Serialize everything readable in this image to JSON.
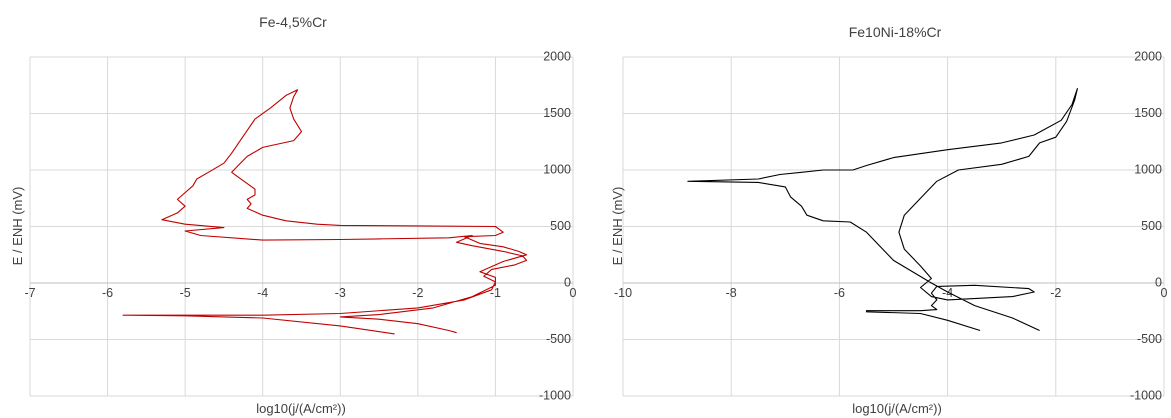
{
  "chart_data": [
    {
      "type": "line",
      "title": "Fe-4,5%Cr",
      "xlabel": "log10(j/(A/cm²))",
      "ylabel": "E / ENH (mV)",
      "xlim": [
        -7,
        0
      ],
      "ylim": [
        -1000,
        2000
      ],
      "xticks": [
        -7,
        -6,
        -5,
        -4,
        -3,
        -2,
        -1,
        0
      ],
      "yticks": [
        -1000,
        -500,
        0,
        500,
        1000,
        1500,
        2000
      ],
      "grid": true,
      "color": "#c00000",
      "series": [
        {
          "values": [
            [
              -2.3,
              -450
            ],
            [
              -3.0,
              -380
            ],
            [
              -4.0,
              -310
            ],
            [
              -5.0,
              -290
            ],
            [
              -5.8,
              -285
            ],
            [
              -5.0,
              -285
            ],
            [
              -4.0,
              -285
            ],
            [
              -3.0,
              -270
            ],
            [
              -2.0,
              -220
            ],
            [
              -1.4,
              -150
            ],
            [
              -1.05,
              -60
            ],
            [
              -1.0,
              10
            ],
            [
              -1.15,
              60
            ],
            [
              -1.05,
              120
            ],
            [
              -0.75,
              160
            ],
            [
              -0.6,
              200
            ],
            [
              -0.65,
              240
            ],
            [
              -0.9,
              280
            ],
            [
              -1.3,
              330
            ],
            [
              -1.5,
              360
            ],
            [
              -1.3,
              420
            ],
            [
              -1.6,
              400
            ],
            [
              -2.5,
              390
            ],
            [
              -3.0,
              385
            ],
            [
              -4.0,
              380
            ],
            [
              -4.8,
              420
            ],
            [
              -5.0,
              460
            ],
            [
              -4.5,
              490
            ],
            [
              -5.0,
              520
            ],
            [
              -5.3,
              560
            ],
            [
              -5.1,
              620
            ],
            [
              -5.0,
              680
            ],
            [
              -5.1,
              740
            ],
            [
              -5.0,
              800
            ],
            [
              -4.9,
              860
            ],
            [
              -4.85,
              920
            ],
            [
              -4.7,
              980
            ],
            [
              -4.5,
              1060
            ],
            [
              -4.4,
              1150
            ],
            [
              -4.3,
              1250
            ],
            [
              -4.2,
              1350
            ],
            [
              -4.1,
              1450
            ],
            [
              -3.9,
              1550
            ],
            [
              -3.7,
              1660
            ],
            [
              -3.55,
              1710
            ],
            [
              -3.6,
              1650
            ],
            [
              -3.65,
              1550
            ],
            [
              -3.6,
              1450
            ],
            [
              -3.5,
              1340
            ],
            [
              -3.6,
              1260
            ],
            [
              -4.0,
              1200
            ],
            [
              -4.2,
              1120
            ],
            [
              -4.3,
              1050
            ],
            [
              -4.4,
              980
            ],
            [
              -4.3,
              930
            ],
            [
              -4.2,
              880
            ],
            [
              -4.1,
              830
            ],
            [
              -4.1,
              780
            ],
            [
              -4.2,
              740
            ],
            [
              -4.15,
              700
            ],
            [
              -4.2,
              660
            ],
            [
              -4.0,
              600
            ],
            [
              -3.7,
              550
            ],
            [
              -3.3,
              520
            ],
            [
              -3.0,
              510
            ],
            [
              -2.0,
              505
            ],
            [
              -1.0,
              500
            ],
            [
              -0.9,
              450
            ],
            [
              -1.0,
              420
            ],
            [
              -1.4,
              410
            ],
            [
              -1.2,
              350
            ],
            [
              -0.9,
              320
            ],
            [
              -0.7,
              280
            ],
            [
              -0.6,
              250
            ],
            [
              -0.9,
              190
            ],
            [
              -1.2,
              100
            ],
            [
              -1.0,
              50
            ],
            [
              -1.0,
              -20
            ],
            [
              -1.3,
              -120
            ],
            [
              -1.8,
              -220
            ],
            [
              -2.5,
              -280
            ],
            [
              -3.0,
              -300
            ],
            [
              -2.5,
              -320
            ],
            [
              -2.0,
              -360
            ],
            [
              -1.6,
              -420
            ],
            [
              -1.5,
              -440
            ]
          ]
        }
      ]
    },
    {
      "type": "line",
      "title": "Fe10Ni-18%Cr",
      "xlabel": "log10(j/(A/cm²))",
      "ylabel": "E / ENH (mV)",
      "xlim": [
        -10,
        0
      ],
      "ylim": [
        -1000,
        2000
      ],
      "xticks": [
        -10,
        -8,
        -6,
        -4,
        -2,
        0
      ],
      "yticks": [
        -1000,
        -500,
        0,
        500,
        1000,
        1500,
        2000
      ],
      "grid": true,
      "color": "#000000",
      "series": [
        {
          "values": [
            [
              -3.4,
              -420
            ],
            [
              -4.0,
              -330
            ],
            [
              -4.5,
              -270
            ],
            [
              -5.5,
              -255
            ],
            [
              -5.5,
              -245
            ],
            [
              -4.5,
              -245
            ],
            [
              -4.2,
              -235
            ],
            [
              -4.3,
              -200
            ],
            [
              -4.2,
              -150
            ],
            [
              -4.3,
              -90
            ],
            [
              -4.2,
              -30
            ],
            [
              -3.5,
              -20
            ],
            [
              -2.5,
              -50
            ],
            [
              -2.4,
              -80
            ],
            [
              -2.8,
              -120
            ],
            [
              -4.0,
              -150
            ],
            [
              -4.3,
              -120
            ],
            [
              -4.5,
              -40
            ],
            [
              -4.3,
              40
            ],
            [
              -4.5,
              150
            ],
            [
              -4.8,
              300
            ],
            [
              -4.9,
              450
            ],
            [
              -4.8,
              600
            ],
            [
              -4.5,
              750
            ],
            [
              -4.2,
              900
            ],
            [
              -3.8,
              1000
            ],
            [
              -3.0,
              1050
            ],
            [
              -2.5,
              1120
            ],
            [
              -2.3,
              1240
            ],
            [
              -2.0,
              1290
            ],
            [
              -1.8,
              1430
            ],
            [
              -1.65,
              1620
            ],
            [
              -1.6,
              1720
            ],
            [
              -1.7,
              1580
            ],
            [
              -1.9,
              1440
            ],
            [
              -2.4,
              1310
            ],
            [
              -3.0,
              1240
            ],
            [
              -4.0,
              1180
            ],
            [
              -5.0,
              1110
            ],
            [
              -5.5,
              1040
            ],
            [
              -5.75,
              1000
            ],
            [
              -6.3,
              1000
            ],
            [
              -6.7,
              980
            ],
            [
              -7.1,
              960
            ],
            [
              -7.5,
              920
            ],
            [
              -8.8,
              900
            ],
            [
              -7.5,
              890
            ],
            [
              -7.0,
              850
            ],
            [
              -6.9,
              760
            ],
            [
              -6.7,
              680
            ],
            [
              -6.6,
              600
            ],
            [
              -6.3,
              550
            ],
            [
              -5.8,
              540
            ],
            [
              -5.5,
              450
            ],
            [
              -5.0,
              200
            ],
            [
              -4.3,
              0
            ],
            [
              -4.0,
              -80
            ],
            [
              -3.5,
              -200
            ],
            [
              -2.8,
              -310
            ],
            [
              -2.3,
              -420
            ]
          ]
        }
      ]
    }
  ]
}
